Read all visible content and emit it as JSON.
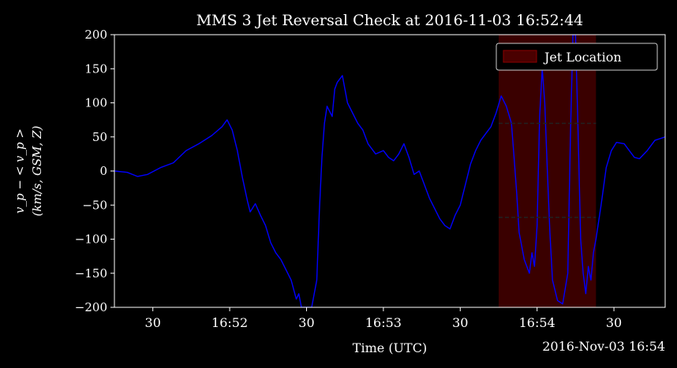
{
  "chart_data": {
    "type": "line",
    "title": "MMS 3 Jet Reversal Check at 2016-11-03 16:52:44",
    "xlabel": "Time (UTC)",
    "date_label": "2016-Nov-03 16:54",
    "ylabel_line1": "v_p − < v_p >",
    "ylabel_line2": "(km/s, GSM, Z)",
    "ylim": [
      -200,
      200
    ],
    "yticks": [
      -200,
      -150,
      -100,
      -50,
      0,
      50,
      100,
      150,
      200
    ],
    "ytick_labels": [
      "−200",
      "−150",
      "−100",
      "−50",
      "0",
      "50",
      "100",
      "150",
      "200"
    ],
    "xlim": [
      "16:51:15",
      "16:54:50"
    ],
    "xticks": [
      {
        "time": "16:51:30",
        "label": "30"
      },
      {
        "time": "16:52:00",
        "label": "16:52"
      },
      {
        "time": "16:52:30",
        "label": "30"
      },
      {
        "time": "16:53:00",
        "label": "16:53"
      },
      {
        "time": "16:53:30",
        "label": "30"
      },
      {
        "time": "16:54:00",
        "label": "16:54"
      },
      {
        "time": "16:54:30",
        "label": "30"
      }
    ],
    "jet_location": {
      "start": "16:53:45",
      "end": "16:54:23",
      "label": "Jet Location",
      "color": "#8b0000"
    },
    "threshold_lines": {
      "values": [
        70,
        -68
      ],
      "start": "16:53:45",
      "end": "16:54:23",
      "style": "dashed",
      "color": "#222222"
    },
    "legend": {
      "position": "top-right",
      "entries": [
        "Jet Location"
      ]
    },
    "series": [
      {
        "color": "#0000ff",
        "points": [
          [
            "16:51:15",
            0
          ],
          [
            "16:51:20",
            -2
          ],
          [
            "16:51:24",
            -8
          ],
          [
            "16:51:28",
            -5
          ],
          [
            "16:51:33",
            5
          ],
          [
            "16:51:38",
            12
          ],
          [
            "16:51:43",
            30
          ],
          [
            "16:51:48",
            40
          ],
          [
            "16:51:53",
            52
          ],
          [
            "16:51:57",
            65
          ],
          [
            "16:51:59",
            75
          ],
          [
            "16:52:01",
            60
          ],
          [
            "16:52:03",
            30
          ],
          [
            "16:52:05",
            -10
          ],
          [
            "16:52:07",
            -45
          ],
          [
            "16:52:08",
            -60
          ],
          [
            "16:52:10",
            -48
          ],
          [
            "16:52:12",
            -65
          ],
          [
            "16:52:14",
            -80
          ],
          [
            "16:52:16",
            -105
          ],
          [
            "16:52:18",
            -120
          ],
          [
            "16:52:20",
            -130
          ],
          [
            "16:52:22",
            -145
          ],
          [
            "16:52:24",
            -160
          ],
          [
            "16:52:26",
            -188
          ],
          [
            "16:52:27",
            -180
          ],
          [
            "16:52:28",
            -200
          ],
          [
            "16:52:32",
            -200
          ],
          [
            "16:52:34",
            -160
          ],
          [
            "16:52:35",
            -60
          ],
          [
            "16:52:36",
            20
          ],
          [
            "16:52:37",
            70
          ],
          [
            "16:52:38",
            95
          ],
          [
            "16:52:40",
            80
          ],
          [
            "16:52:41",
            120
          ],
          [
            "16:52:42",
            130
          ],
          [
            "16:52:44",
            140
          ],
          [
            "16:52:46",
            100
          ],
          [
            "16:52:48",
            85
          ],
          [
            "16:52:50",
            70
          ],
          [
            "16:52:52",
            60
          ],
          [
            "16:52:54",
            40
          ],
          [
            "16:52:57",
            25
          ],
          [
            "16:53:00",
            30
          ],
          [
            "16:53:02",
            20
          ],
          [
            "16:53:04",
            15
          ],
          [
            "16:53:06",
            25
          ],
          [
            "16:53:08",
            40
          ],
          [
            "16:53:10",
            20
          ],
          [
            "16:53:12",
            -5
          ],
          [
            "16:53:14",
            0
          ],
          [
            "16:53:16",
            -20
          ],
          [
            "16:53:18",
            -40
          ],
          [
            "16:53:20",
            -55
          ],
          [
            "16:53:22",
            -70
          ],
          [
            "16:53:24",
            -80
          ],
          [
            "16:53:26",
            -85
          ],
          [
            "16:53:28",
            -65
          ],
          [
            "16:53:30",
            -50
          ],
          [
            "16:53:32",
            -20
          ],
          [
            "16:53:34",
            10
          ],
          [
            "16:53:36",
            30
          ],
          [
            "16:53:38",
            45
          ],
          [
            "16:53:40",
            55
          ],
          [
            "16:53:42",
            65
          ],
          [
            "16:53:44",
            85
          ],
          [
            "16:53:46",
            110
          ],
          [
            "16:53:48",
            95
          ],
          [
            "16:53:50",
            70
          ],
          [
            "16:53:51",
            20
          ],
          [
            "16:53:52",
            -30
          ],
          [
            "16:53:53",
            -90
          ],
          [
            "16:53:55",
            -130
          ],
          [
            "16:53:57",
            -150
          ],
          [
            "16:53:58",
            -120
          ],
          [
            "16:53:59",
            -140
          ],
          [
            "16:54:00",
            -80
          ],
          [
            "16:54:01",
            80
          ],
          [
            "16:54:02",
            150
          ],
          [
            "16:54:03",
            100
          ],
          [
            "16:54:04",
            0
          ],
          [
            "16:54:05",
            -90
          ],
          [
            "16:54:06",
            -160
          ],
          [
            "16:54:08",
            -190
          ],
          [
            "16:54:10",
            -195
          ],
          [
            "16:54:12",
            -150
          ],
          [
            "16:54:13",
            50
          ],
          [
            "16:54:14",
            200
          ],
          [
            "16:54:15",
            200
          ],
          [
            "16:54:16",
            60
          ],
          [
            "16:54:17",
            -100
          ],
          [
            "16:54:18",
            -150
          ],
          [
            "16:54:19",
            -180
          ],
          [
            "16:54:20",
            -140
          ],
          [
            "16:54:21",
            -160
          ],
          [
            "16:54:22",
            -120
          ],
          [
            "16:54:23",
            -100
          ],
          [
            "16:54:25",
            -50
          ],
          [
            "16:54:27",
            5
          ],
          [
            "16:54:29",
            30
          ],
          [
            "16:54:31",
            42
          ],
          [
            "16:54:34",
            40
          ],
          [
            "16:54:36",
            30
          ],
          [
            "16:54:38",
            20
          ],
          [
            "16:54:40",
            18
          ],
          [
            "16:54:43",
            30
          ],
          [
            "16:54:46",
            45
          ],
          [
            "16:54:50",
            50
          ]
        ]
      }
    ]
  }
}
